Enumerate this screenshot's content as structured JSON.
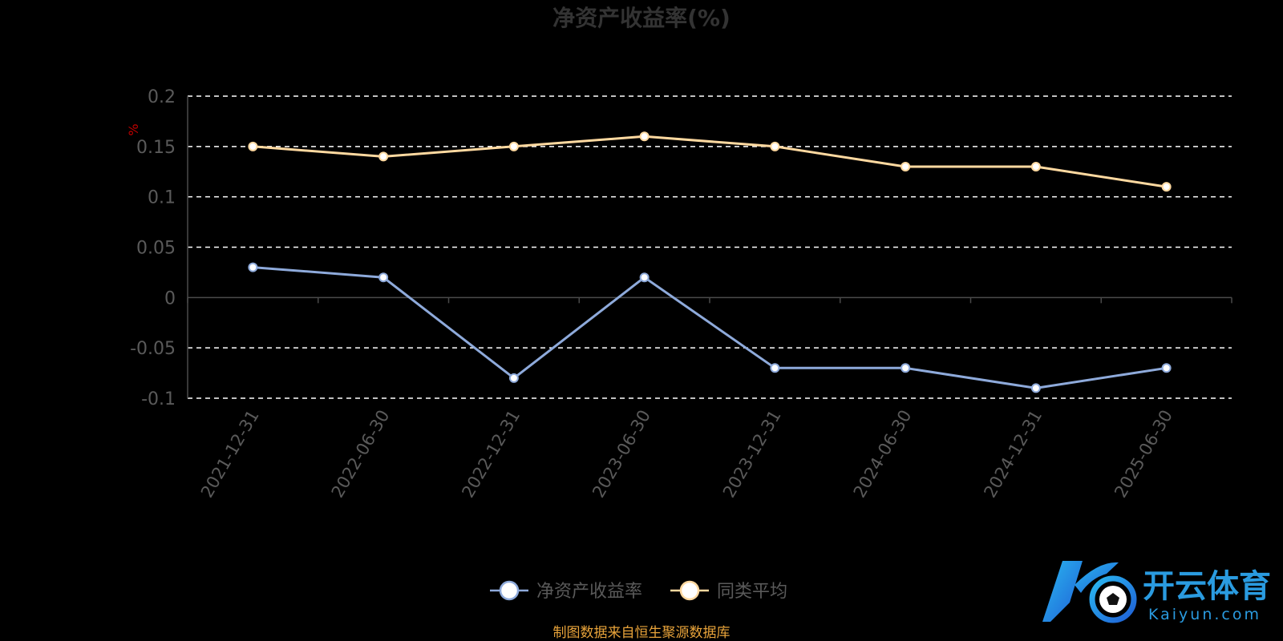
{
  "chart_data": {
    "type": "line",
    "title": "净资产收益率(%)",
    "y_unit": "%",
    "categories": [
      "2021-12-31",
      "2022-06-30",
      "2022-12-31",
      "2023-06-30",
      "2023-12-31",
      "2024-06-30",
      "2024-12-31",
      "2025-06-30"
    ],
    "ylim": [
      -0.1,
      0.2
    ],
    "yticks": [
      "0.2",
      "0.15",
      "0.1",
      "0.05",
      "0",
      "-0.05",
      "-0.1"
    ],
    "grid": true,
    "legend_position": "bottom",
    "series": [
      {
        "name": "净资产收益率",
        "color": "#8eaadb",
        "values": [
          0.03,
          0.02,
          -0.08,
          0.02,
          -0.07,
          -0.07,
          -0.09,
          -0.07
        ]
      },
      {
        "name": "同类平均",
        "color": "#ffd9a0",
        "values": [
          0.15,
          0.14,
          0.15,
          0.16,
          0.15,
          0.13,
          0.13,
          0.11
        ]
      }
    ]
  },
  "source_note": "制图数据来自恒生聚源数据库",
  "watermark": {
    "brand_cn": "开云体育",
    "brand_en": "Kaiyun.com"
  }
}
